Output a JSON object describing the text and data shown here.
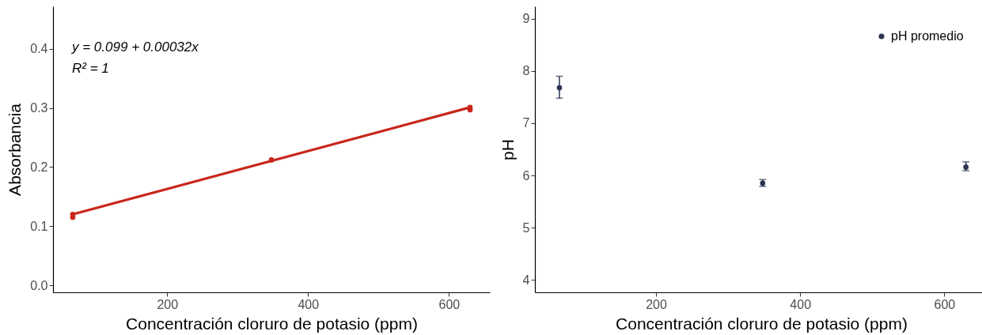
{
  "chart_data": [
    {
      "type": "scatter",
      "xlabel": "Concentración cloruro de potasio (ppm)",
      "ylabel": "Absorbancia",
      "xlim": [
        38,
        658
      ],
      "ylim": [
        -0.012,
        0.472
      ],
      "xticks": [
        200,
        400,
        600
      ],
      "yticks": [
        {
          "value": 0,
          "label": "0.0"
        },
        {
          "value": 0.1,
          "label": "0.1"
        },
        {
          "value": 0.2,
          "label": "0.2"
        },
        {
          "value": 0.3,
          "label": "0.3"
        },
        {
          "value": 0.4,
          "label": "0.4"
        }
      ],
      "grid": false,
      "annotations": [
        "y = 0.099 + 0.00032x",
        "R² = 1"
      ],
      "series": [
        {
          "type": "scatter",
          "marker": "circle",
          "color": "#c8261b",
          "x": [
            66,
            66,
            348,
            630,
            630
          ],
          "values": [
            0.115,
            0.12,
            0.212,
            0.297,
            0.301
          ]
        },
        {
          "type": "line",
          "color": "#c8261b",
          "x": [
            66,
            630
          ],
          "values": [
            0.12,
            0.301
          ]
        }
      ]
    },
    {
      "type": "scatter",
      "xlabel": "Concentración cloruro de potasio (ppm)",
      "ylabel": "pH",
      "xlim": [
        32,
        660
      ],
      "ylim": [
        3.76,
        9.24
      ],
      "xticks": [
        200,
        400,
        600
      ],
      "yticks": [
        4,
        5,
        6,
        7,
        8,
        9
      ],
      "grid": false,
      "legend": "top right",
      "series": [
        {
          "name": "pH promedio",
          "marker": "circle",
          "color": "#2b3450",
          "x": [
            66,
            348,
            630
          ],
          "values": [
            7.68,
            5.85,
            6.16
          ],
          "errors": [
            [
              7.48,
              7.9
            ],
            [
              5.79,
              5.92
            ],
            [
              6.09,
              6.26
            ]
          ]
        }
      ]
    }
  ]
}
